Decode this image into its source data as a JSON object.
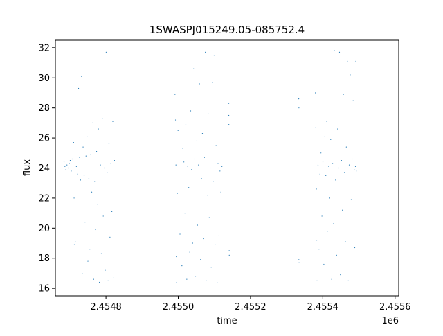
{
  "chart_data": {
    "type": "scatter",
    "title": "1SWASPJ015249.05-085752.4",
    "xlabel": "time",
    "ylabel": "flux",
    "x_offset_label": "1e6",
    "xlim": [
      2454660,
      2455610
    ],
    "ylim": [
      15.5,
      32.5
    ],
    "xticks": [
      2454800,
      2455000,
      2455200,
      2455400,
      2455600
    ],
    "xtick_labels": [
      "2.4548",
      "2.4550",
      "2.4552",
      "2.4554",
      "2.4556"
    ],
    "yticks": [
      16,
      18,
      20,
      22,
      24,
      26,
      28,
      30,
      32
    ],
    "ytick_labels": [
      "16",
      "18",
      "20",
      "22",
      "24",
      "26",
      "28",
      "30",
      "32"
    ],
    "grid": false,
    "marker_color": "#1f77b4",
    "series": [
      {
        "values": [
          [
            2454684.0,
            24.4
          ],
          [
            2454686.5,
            24.1
          ],
          [
            2454689.3,
            23.9
          ],
          [
            2454692.1,
            24.2
          ],
          [
            2454695.8,
            24.0
          ],
          [
            2454698.6,
            24.3
          ],
          [
            2454701.2,
            24.5
          ],
          [
            2454703.9,
            23.8
          ],
          [
            2454706.5,
            24.6
          ],
          [
            2454709.0,
            25.2
          ],
          [
            2454710.4,
            25.7
          ],
          [
            2454711.8,
            22.0
          ],
          [
            2454712.5,
            18.9
          ],
          [
            2454714.9,
            19.1
          ],
          [
            2454718.2,
            24.1
          ],
          [
            2454721.6,
            23.6
          ],
          [
            2454724.3,
            29.3
          ],
          [
            2454727.1,
            24.7
          ],
          [
            2454729.8,
            23.2
          ],
          [
            2454732.4,
            30.1
          ],
          [
            2454734.0,
            17.0
          ],
          [
            2454736.7,
            25.4
          ],
          [
            2454739.5,
            23.5
          ],
          [
            2454742.2,
            20.4
          ],
          [
            2454744.8,
            24.8
          ],
          [
            2454747.5,
            26.1
          ],
          [
            2454750.1,
            17.8
          ],
          [
            2454752.8,
            23.3
          ],
          [
            2454755.4,
            18.6
          ],
          [
            2454758.1,
            24.9
          ],
          [
            2454760.7,
            22.4
          ],
          [
            2454763.4,
            27.0
          ],
          [
            2454766.0,
            16.6
          ],
          [
            2454768.7,
            23.1
          ],
          [
            2454771.3,
            19.9
          ],
          [
            2454774.0,
            25.1
          ],
          [
            2454776.6,
            21.6
          ],
          [
            2454779.3,
            26.6
          ],
          [
            2454781.9,
            16.4
          ],
          [
            2454784.6,
            24.2
          ],
          [
            2454787.2,
            18.3
          ],
          [
            2454789.9,
            27.3
          ],
          [
            2454792.5,
            20.8
          ],
          [
            2454795.2,
            24.0
          ],
          [
            2454797.8,
            17.2
          ],
          [
            2454800.5,
            31.7
          ],
          [
            2454803.1,
            23.7
          ],
          [
            2454805.8,
            16.5
          ],
          [
            2454808.4,
            25.6
          ],
          [
            2454811.1,
            19.4
          ],
          [
            2454813.7,
            24.3
          ],
          [
            2454816.4,
            21.1
          ],
          [
            2454819.0,
            27.1
          ],
          [
            2454821.7,
            16.7
          ],
          [
            2454823.5,
            24.5
          ],
          [
            2454991.0,
            28.9
          ],
          [
            2454992.3,
            27.2
          ],
          [
            2454993.6,
            24.2
          ],
          [
            2454994.8,
            18.1
          ],
          [
            2454995.7,
            16.4
          ],
          [
            2454997.1,
            22.3
          ],
          [
            2454999.4,
            26.5
          ],
          [
            2455002.0,
            24.0
          ],
          [
            2455004.8,
            19.6
          ],
          [
            2455007.5,
            23.4
          ],
          [
            2455010.2,
            17.5
          ],
          [
            2455012.9,
            25.3
          ],
          [
            2455015.6,
            24.4
          ],
          [
            2455018.3,
            21.0
          ],
          [
            2455021.0,
            26.9
          ],
          [
            2455023.7,
            16.6
          ],
          [
            2455026.4,
            24.1
          ],
          [
            2455029.1,
            22.7
          ],
          [
            2455031.8,
            18.4
          ],
          [
            2455034.5,
            27.8
          ],
          [
            2455037.2,
            23.9
          ],
          [
            2455039.9,
            19.0
          ],
          [
            2455042.6,
            30.6
          ],
          [
            2455045.3,
            24.6
          ],
          [
            2455048.0,
            16.8
          ],
          [
            2455050.7,
            25.8
          ],
          [
            2455053.4,
            20.2
          ],
          [
            2455056.1,
            24.2
          ],
          [
            2455058.8,
            29.6
          ],
          [
            2455061.5,
            17.9
          ],
          [
            2455064.2,
            23.3
          ],
          [
            2455066.9,
            26.3
          ],
          [
            2455069.6,
            19.3
          ],
          [
            2455072.3,
            24.7
          ],
          [
            2455075.0,
            31.7
          ],
          [
            2455077.7,
            16.5
          ],
          [
            2455080.4,
            22.2
          ],
          [
            2455083.1,
            27.6
          ],
          [
            2455085.8,
            20.7
          ],
          [
            2455088.5,
            24.0
          ],
          [
            2455091.2,
            17.4
          ],
          [
            2455093.9,
            29.7
          ],
          [
            2455096.6,
            23.1
          ],
          [
            2455099.3,
            31.5
          ],
          [
            2455102.0,
            18.9
          ],
          [
            2455104.7,
            25.5
          ],
          [
            2455107.4,
            16.4
          ],
          [
            2455110.1,
            24.3
          ],
          [
            2455112.8,
            19.5
          ],
          [
            2455115.5,
            23.8
          ],
          [
            2455118.2,
            22.4
          ],
          [
            2455121.0,
            24.1
          ],
          [
            2455139.8,
            28.3
          ],
          [
            2455140.0,
            27.5
          ],
          [
            2455140.2,
            26.9
          ],
          [
            2455141.0,
            18.5
          ],
          [
            2455141.2,
            18.2
          ],
          [
            2455333.5,
            28.6
          ],
          [
            2455334.0,
            28.0
          ],
          [
            2455333.8,
            17.9
          ],
          [
            2455334.3,
            17.7
          ],
          [
            2455379.5,
            29.0
          ],
          [
            2455380.6,
            26.7
          ],
          [
            2455381.4,
            24.0
          ],
          [
            2455382.3,
            22.6
          ],
          [
            2455383.2,
            19.2
          ],
          [
            2455384.0,
            16.5
          ],
          [
            2455386.8,
            24.2
          ],
          [
            2455389.5,
            18.6
          ],
          [
            2455392.2,
            23.6
          ],
          [
            2455394.9,
            25.0
          ],
          [
            2455397.6,
            20.8
          ],
          [
            2455400.3,
            24.4
          ],
          [
            2455403.0,
            17.6
          ],
          [
            2455405.7,
            26.1
          ],
          [
            2455408.4,
            23.5
          ],
          [
            2455411.1,
            27.1
          ],
          [
            2455413.8,
            19.8
          ],
          [
            2455416.5,
            24.1
          ],
          [
            2455419.2,
            22.0
          ],
          [
            2455421.9,
            25.9
          ],
          [
            2455424.6,
            16.6
          ],
          [
            2455427.3,
            24.3
          ],
          [
            2455430.0,
            20.3
          ],
          [
            2455432.7,
            31.8
          ],
          [
            2455435.4,
            23.2
          ],
          [
            2455438.1,
            18.2
          ],
          [
            2455440.8,
            26.6
          ],
          [
            2455443.5,
            24.0
          ],
          [
            2455446.2,
            31.7
          ],
          [
            2455448.9,
            16.9
          ],
          [
            2455451.6,
            24.5
          ],
          [
            2455454.3,
            21.2
          ],
          [
            2455457.0,
            28.9
          ],
          [
            2455459.7,
            23.7
          ],
          [
            2455462.4,
            19.1
          ],
          [
            2455465.1,
            25.4
          ],
          [
            2455467.8,
            31.1
          ],
          [
            2455470.5,
            16.5
          ],
          [
            2455473.2,
            24.2
          ],
          [
            2455475.9,
            30.2
          ],
          [
            2455478.6,
            21.9
          ],
          [
            2455481.3,
            24.6
          ],
          [
            2455484.0,
            28.5
          ],
          [
            2455486.7,
            23.9
          ],
          [
            2455488.5,
            18.7
          ],
          [
            2455490.3,
            24.1
          ],
          [
            2455491.5,
            31.1
          ],
          [
            2455492.5,
            23.8
          ]
        ]
      }
    ]
  }
}
